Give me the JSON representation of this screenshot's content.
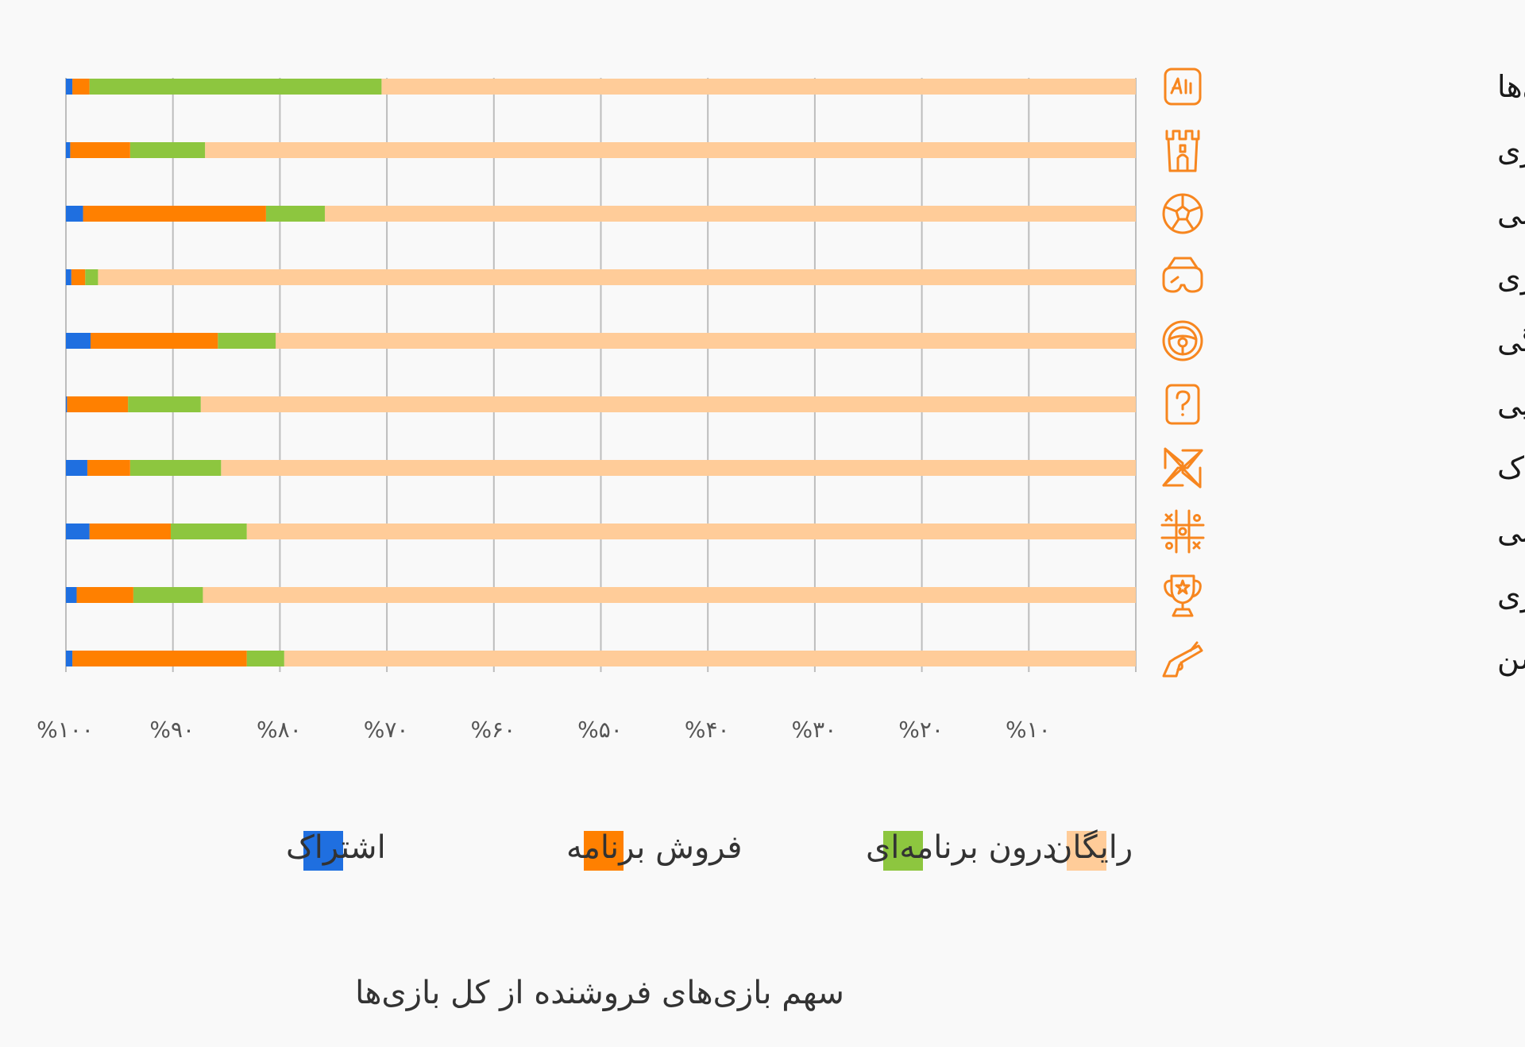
{
  "chart_data": {
    "type": "bar",
    "orientation": "horizontal",
    "stacked": true,
    "title": "",
    "caption": "سهم بازی‌های فروشنده از کل بازی‌ها",
    "xlabel": "",
    "ylabel": "",
    "xlim": [
      0,
      100
    ],
    "x_axis_direction": "right-to-left",
    "xticks": [
      100,
      90,
      80,
      70,
      60,
      50,
      40,
      30,
      20,
      10
    ],
    "xtick_labels": [
      "%۱۰۰",
      "%۹۰",
      "%۸۰",
      "%۷۰",
      "%۶۰",
      "%۵۰",
      "%۴۰",
      "%۳۰",
      "%۲۰",
      "%۱۰"
    ],
    "grid": true,
    "legend_position": "bottom",
    "categories": [
      "کلمات و دانستنی‌ها",
      "استراتژی",
      "ورزشی",
      "شبیه‌سازی",
      "رانندگی",
      "معمایی",
      "کودک",
      "تفننی",
      "امتیازی",
      "اکشن"
    ],
    "category_icons": [
      "alef-badge-icon",
      "castle-tower-icon",
      "soccer-ball-icon",
      "vr-goggles-icon",
      "steering-wheel-icon",
      "question-mark-icon",
      "pinwheel-icon",
      "tic-tac-toe-icon",
      "trophy-icon",
      "pistol-icon"
    ],
    "series": [
      {
        "name": "رایگان",
        "color": "#ffcc99",
        "values": [
          70.5,
          87.0,
          75.8,
          97.0,
          80.4,
          87.4,
          85.5,
          83.1,
          87.2,
          79.6
        ]
      },
      {
        "name": "درون برنامه‌ای",
        "color": "#8dc63f",
        "values": [
          27.3,
          7.0,
          5.5,
          1.2,
          5.4,
          6.8,
          8.5,
          7.1,
          6.5,
          3.5
        ]
      },
      {
        "name": "فروش برنامه",
        "color": "#ff8000",
        "values": [
          1.6,
          5.6,
          17.1,
          1.3,
          11.9,
          5.7,
          4.0,
          7.6,
          5.3,
          16.3
        ]
      },
      {
        "name": "اشتراک",
        "color": "#1f6fe0",
        "values": [
          0.6,
          0.4,
          1.6,
          0.5,
          2.3,
          0.1,
          2.0,
          2.2,
          1.0,
          0.6
        ]
      }
    ]
  },
  "colors": {
    "icon_accent": "#f7861f",
    "gridline": "#bdbdbd",
    "background": "#f9f9f9"
  }
}
